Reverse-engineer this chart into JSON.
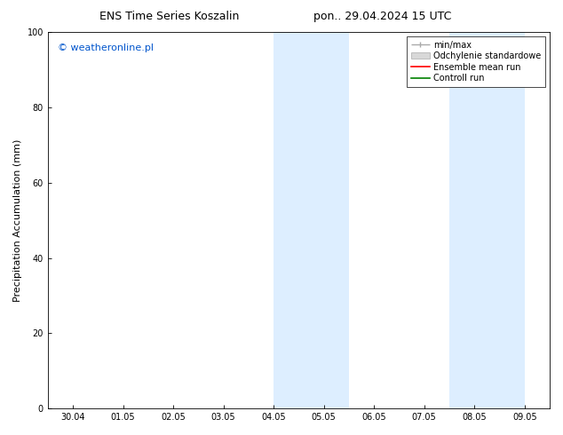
{
  "title_left": "ENS Time Series Koszalin",
  "title_right": "pon.. 29.04.2024 15 UTC",
  "ylabel": "Precipitation Accumulation (mm)",
  "watermark": "© weatheronline.pl",
  "watermark_color": "#0055cc",
  "ylim": [
    0,
    100
  ],
  "yticks": [
    0,
    20,
    40,
    60,
    80,
    100
  ],
  "xtick_labels": [
    "30.04",
    "01.05",
    "02.05",
    "03.05",
    "04.05",
    "05.05",
    "06.05",
    "07.05",
    "08.05",
    "09.05"
  ],
  "xtick_positions": [
    0,
    1,
    2,
    3,
    4,
    5,
    6,
    7,
    8,
    9
  ],
  "shaded_regions": [
    {
      "xmin": 4.0,
      "xmax": 5.5,
      "color": "#ddeeff"
    },
    {
      "xmin": 7.5,
      "xmax": 9.0,
      "color": "#ddeeff"
    }
  ],
  "bg_color": "#ffffff",
  "legend_items": [
    {
      "label": "min/max",
      "color": "#aaaaaa",
      "style": "line_with_caps"
    },
    {
      "label": "Odchylenie standardowe",
      "color": "#cccccc",
      "style": "bar"
    },
    {
      "label": "Ensemble mean run",
      "color": "#ff0000",
      "style": "line"
    },
    {
      "label": "Controll run",
      "color": "#008000",
      "style": "line"
    }
  ],
  "title_fontsize": 9,
  "axis_fontsize": 8,
  "tick_fontsize": 7,
  "watermark_fontsize": 8,
  "legend_fontsize": 7
}
